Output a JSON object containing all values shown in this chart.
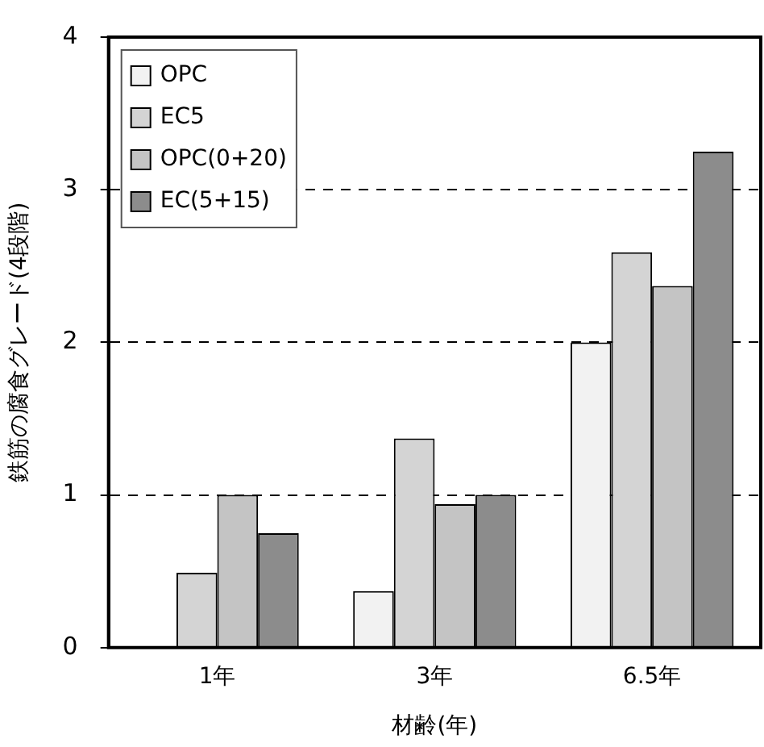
{
  "chart_data": {
    "type": "bar",
    "xlabel": "材齢(年)",
    "ylabel": "鉄筋の腐食グレード(4段階)",
    "categories": [
      "1年",
      "3年",
      "6.5年"
    ],
    "series": [
      {
        "name": "OPC",
        "color": "#f2f2f2",
        "values": [
          0,
          0.37,
          2.0
        ]
      },
      {
        "name": "EC5",
        "color": "#d4d4d4",
        "values": [
          0.49,
          1.37,
          2.59
        ]
      },
      {
        "name": "OPC(0+20)",
        "color": "#c4c4c4",
        "values": [
          1.0,
          0.94,
          2.37
        ]
      },
      {
        "name": "EC(5+15)",
        "color": "#8c8c8c",
        "values": [
          0.75,
          1.0,
          3.25
        ]
      }
    ],
    "ylim": [
      0,
      4
    ],
    "yticks": [
      0,
      1,
      2,
      3,
      4
    ],
    "grid": "y",
    "legend": "top left"
  }
}
